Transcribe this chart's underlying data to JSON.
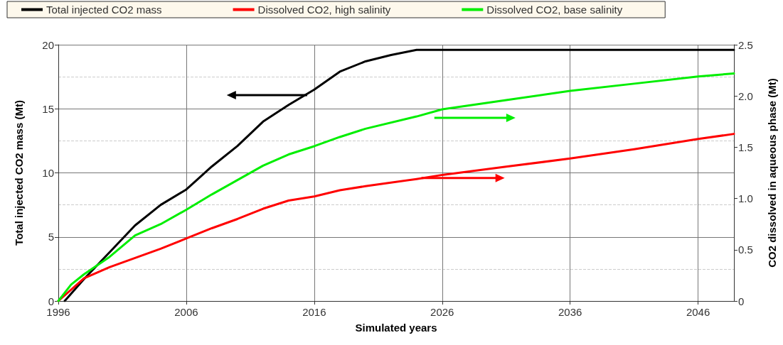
{
  "chart_data": {
    "type": "line",
    "xlabel": "Simulated years",
    "ylabel": "Total injected CO2 mass (Mt)",
    "y2label": "CO2 dissolved in aqueous phase (Mt)",
    "xlim": [
      1996,
      2048.8
    ],
    "xticks": [
      1996,
      2006,
      2016,
      2026,
      2036,
      2046
    ],
    "ylim": [
      0,
      20
    ],
    "yticks": [
      0,
      5,
      10,
      15,
      20
    ],
    "y2lim": [
      0,
      2.5
    ],
    "y2ticks": [
      0,
      {
        "value": 0.5,
        "label": "0.5"
      },
      {
        "value": 1,
        "label": "1.0"
      },
      {
        "value": 1.5,
        "label": "1.5"
      },
      {
        "value": 2,
        "label": "2.0"
      },
      {
        "value": 2.5,
        "label": "2.5"
      }
    ],
    "grid": true,
    "legend": "top",
    "marker": "none",
    "line_style": "solid",
    "series": [
      {
        "name": "Total injected CO2 mass",
        "color": "#000000",
        "x": [
          1996.5,
          1998,
          2000,
          2002,
          2004,
          2006,
          2008,
          2010,
          2012,
          2014,
          2016,
          2018,
          2020,
          2022,
          2024,
          2025,
          2048.8
        ],
        "values": [
          0,
          1.7,
          3.8,
          5.9,
          7.5,
          8.7,
          10.5,
          12.1,
          14.0,
          15.3,
          16.5,
          17.9,
          18.7,
          19.2,
          19.6,
          19.6,
          19.6
        ]
      },
      {
        "name": "Dissolved CO2, high salinity",
        "color": "#ff0000",
        "axis": "y2",
        "x": [
          1996,
          1997,
          1998,
          2000,
          2002,
          2004,
          2006,
          2008,
          2010,
          2012,
          2014,
          2016,
          2018,
          2020,
          2024,
          2026,
          2031,
          2036,
          2041,
          2046,
          2048.8
        ],
        "values": [
          0,
          0.11,
          0.22,
          0.33,
          0.42,
          0.51,
          0.61,
          0.71,
          0.8,
          0.9,
          0.98,
          1.02,
          1.08,
          1.12,
          1.19,
          1.23,
          1.31,
          1.39,
          1.48,
          1.58,
          1.63
        ]
      },
      {
        "name": "Dissolved CO2, base salinity",
        "color": "#00ee00",
        "axis": "y2",
        "x": [
          1996,
          1997,
          1998,
          2000,
          2002,
          2004,
          2006,
          2008,
          2010,
          2012,
          2014,
          2016,
          2018,
          2020,
          2024,
          2026,
          2031,
          2036,
          2041,
          2046,
          2048.8
        ],
        "values": [
          0,
          0.16,
          0.26,
          0.43,
          0.64,
          0.75,
          0.89,
          1.04,
          1.18,
          1.32,
          1.43,
          1.51,
          1.6,
          1.68,
          1.8,
          1.87,
          1.96,
          2.05,
          2.12,
          2.19,
          2.22
        ]
      }
    ]
  }
}
